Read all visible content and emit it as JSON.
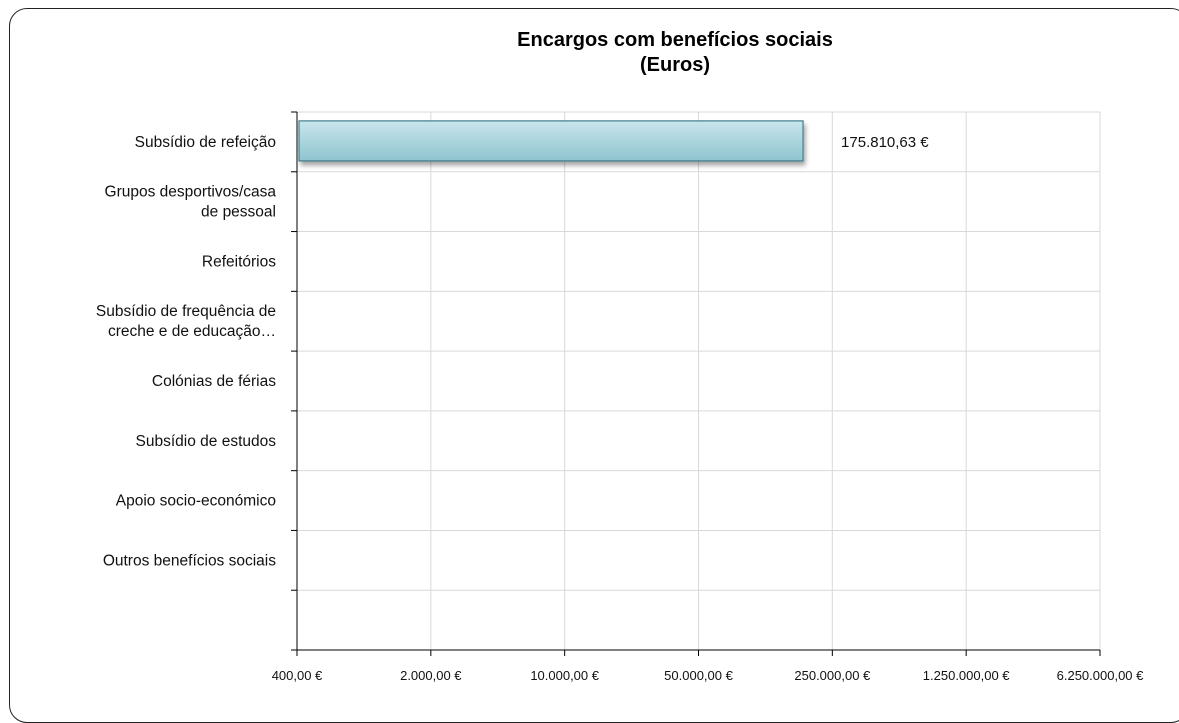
{
  "chart_data": {
    "type": "bar",
    "orientation": "horizontal",
    "title": "Encargos com benefícios sociais",
    "subtitle": "(Euros)",
    "categories": [
      [
        "Subsídio de refeição"
      ],
      [
        "Grupos desportivos/casa",
        "de pessoal"
      ],
      [
        "Refeitórios"
      ],
      [
        "Subsídio de frequência de",
        "creche e de educação…"
      ],
      [
        "Colónias de férias"
      ],
      [
        "Subsídio de estudos"
      ],
      [
        "Apoio socio-económico"
      ],
      [
        "Outros benefícios sociais"
      ]
    ],
    "values": [
      175810.63,
      null,
      null,
      null,
      null,
      null,
      null,
      null
    ],
    "data_labels": [
      "175.810,63 €",
      "",
      "",
      "",
      "",
      "",
      "",
      ""
    ],
    "x_scale": "log",
    "x_ticks": [
      400,
      2000,
      10000,
      50000,
      250000,
      1250000,
      6250000
    ],
    "x_tick_labels": [
      "400,00 €",
      "2.000,00 €",
      "10.000,00 €",
      "50.000,00 €",
      "250.000,00 €",
      "1.250.000,00 €",
      "6.250.000,00 €"
    ],
    "xlim": [
      400,
      6250000
    ],
    "grid": true,
    "colors": {
      "bar_fill_top": "#c9e5ec",
      "bar_fill_bottom": "#8ec4cf",
      "bar_stroke": "#3f7f8c",
      "grid": "#d9d9d9",
      "axis": "#000000"
    }
  }
}
